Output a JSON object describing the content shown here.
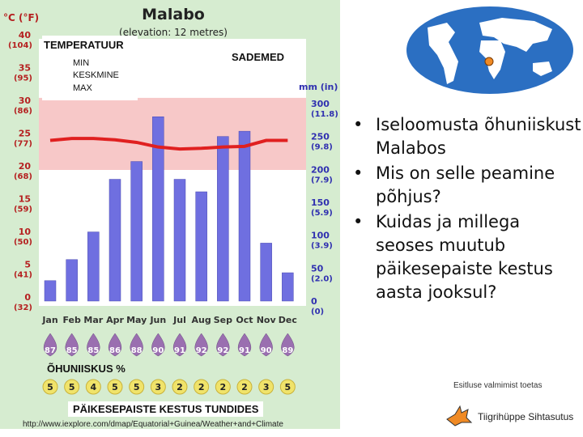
{
  "chart": {
    "title": "Malabo",
    "subtitle": "(elevation: 12 metres)",
    "temp_unit": "°C (°F)",
    "rain_unit": "mm (in)",
    "temp_ticks": [
      {
        "c": "40",
        "f": "(104)"
      },
      {
        "c": "35",
        "f": "(95)"
      },
      {
        "c": "30",
        "f": "(86)"
      },
      {
        "c": "25",
        "f": "(77)"
      },
      {
        "c": "20",
        "f": "(68)"
      },
      {
        "c": "15",
        "f": "(59)"
      },
      {
        "c": "10",
        "f": "(50)"
      },
      {
        "c": "5",
        "f": "(41)"
      },
      {
        "c": "0",
        "f": "(32)"
      }
    ],
    "rain_ticks": [
      {
        "mm": "300",
        "in": "(11.8)"
      },
      {
        "mm": "250",
        "in": "(9.8)"
      },
      {
        "mm": "200",
        "in": "(7.9)"
      },
      {
        "mm": "150",
        "in": "(5.9)"
      },
      {
        "mm": "100",
        "in": "(3.9)"
      },
      {
        "mm": "50",
        "in": "(2.0)"
      },
      {
        "mm": "0",
        "in": "(0)"
      }
    ],
    "colors": {
      "bar": "#6f6fe0",
      "band": "#f7c8c8",
      "line": "#e02020",
      "humidity": "#9a6fb0",
      "sun": "#f0e36a",
      "bg": "#d6ecd0"
    }
  },
  "chart_data": {
    "type": "bar",
    "categories": [
      "Jan",
      "Feb",
      "Mar",
      "Apr",
      "May",
      "Jun",
      "Jul",
      "Aug",
      "Sep",
      "Oct",
      "Nov",
      "Dec"
    ],
    "series": [
      {
        "values": [
          31,
          63,
          105,
          185,
          212,
          280,
          185,
          166,
          250,
          258,
          88,
          43
        ]
      }
    ],
    "temperature_mean": [
      24.5,
      24.8,
      24.8,
      24.6,
      24.2,
      23.5,
      23.2,
      23.3,
      23.5,
      23.6,
      24.5,
      24.5
    ],
    "temperature_band": [
      20,
      31
    ],
    "humidity": [
      87,
      85,
      85,
      86,
      88,
      90,
      91,
      92,
      92,
      91,
      90,
      89
    ],
    "sunshine": [
      5,
      5,
      4,
      5,
      5,
      3,
      2,
      2,
      2,
      2,
      3,
      5
    ],
    "ylim_temp": [
      0,
      40
    ],
    "ylim_rain": [
      0,
      300
    ]
  },
  "labels": {
    "temperatuur": "TEMPERATUUR",
    "min": "MIN",
    "keskmine": "KESKMINE",
    "max": "MAX",
    "sademed": "SADEMED",
    "ohuniiskus": "ÕHUNIISKUS %",
    "paikesepaiste": "PÄIKESEPAISTE KESTUS TUNDIDES"
  },
  "url": "http://www.iexplore.com/dmap/Equatorial+Guinea/Weather+and+Climate",
  "bullets": [
    "Iseloomusta õhuniiskust Malabos",
    "Mis on selle peamine põhjus?",
    "Kuidas ja millega seoses muutub päikesepaiste kestus aasta jooksul?"
  ],
  "footer": {
    "credit": "Esitluse valmimist toetas",
    "org": "Tiigrihüppe Sihtasutus"
  }
}
